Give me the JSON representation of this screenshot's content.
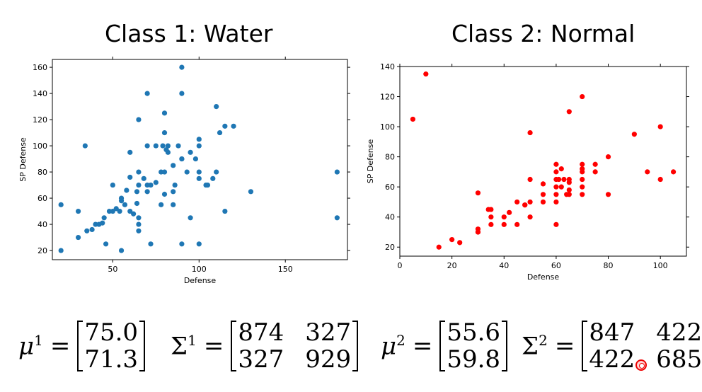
{
  "titles": {
    "left": "Class 1: Water",
    "right": "Class 2: Normal"
  },
  "chart_data": [
    {
      "type": "scatter",
      "title": "Class 1: Water",
      "xlabel": "Defense",
      "ylabel": "SP Defense",
      "xlim": [
        15,
        186
      ],
      "ylim": [
        13,
        166
      ],
      "xticks": [
        50,
        100,
        150
      ],
      "yticks": [
        20,
        40,
        60,
        80,
        100,
        120,
        140,
        160
      ],
      "color": "#1f77b4",
      "grid": false,
      "x": [
        20,
        20,
        30,
        30,
        34,
        35,
        38,
        40,
        42,
        44,
        45,
        46,
        48,
        50,
        50,
        52,
        54,
        55,
        55,
        55,
        57,
        58,
        60,
        60,
        60,
        62,
        64,
        64,
        65,
        65,
        65,
        65,
        65,
        65,
        68,
        70,
        70,
        70,
        70,
        72,
        72,
        75,
        75,
        78,
        78,
        79,
        80,
        80,
        80,
        80,
        81,
        82,
        82,
        85,
        85,
        85,
        86,
        88,
        90,
        90,
        90,
        90,
        90,
        93,
        95,
        95,
        98,
        100,
        100,
        100,
        100,
        100,
        104,
        105,
        108,
        110,
        110,
        112,
        115,
        115,
        120,
        130,
        180,
        180
      ],
      "y": [
        55,
        20,
        50,
        30,
        100,
        35,
        36,
        40,
        40,
        41,
        45,
        25,
        50,
        50,
        70,
        52,
        50,
        58,
        60,
        20,
        55,
        66,
        50,
        95,
        76,
        48,
        56,
        65,
        70,
        80,
        45,
        40,
        35,
        120,
        75,
        100,
        140,
        70,
        65,
        25,
        70,
        72,
        100,
        55,
        80,
        100,
        80,
        125,
        110,
        63,
        97,
        100,
        95,
        85,
        65,
        55,
        70,
        100,
        160,
        140,
        90,
        25,
        90,
        80,
        95,
        45,
        90,
        80,
        105,
        100,
        75,
        25,
        70,
        70,
        75,
        130,
        80,
        110,
        115,
        50,
        115,
        65,
        80,
        45
      ]
    },
    {
      "type": "scatter",
      "title": "Class 2: Normal",
      "xlabel": "Defense",
      "ylabel": "SP Defense",
      "xlim": [
        0,
        110
      ],
      "ylim": [
        14,
        140
      ],
      "xticks": [
        0,
        20,
        40,
        60,
        80,
        100
      ],
      "yticks": [
        20,
        40,
        60,
        80,
        100,
        120,
        140
      ],
      "color": "#ff0000",
      "grid": false,
      "x": [
        5,
        10,
        15,
        20,
        23,
        30,
        30,
        30,
        30,
        34,
        35,
        35,
        35,
        40,
        40,
        42,
        45,
        45,
        48,
        48,
        50,
        50,
        50,
        50,
        55,
        55,
        55,
        60,
        60,
        60,
        60,
        60,
        60,
        60,
        61,
        62,
        62,
        63,
        64,
        65,
        65,
        65,
        65,
        65,
        70,
        70,
        70,
        70,
        70,
        70,
        70,
        75,
        75,
        80,
        80,
        90,
        95,
        100,
        100,
        105
      ],
      "y": [
        105,
        135,
        20,
        25,
        23,
        56,
        32,
        30,
        30,
        45,
        40,
        35,
        45,
        35,
        40,
        43,
        50,
        35,
        48,
        48,
        96,
        40,
        50,
        65,
        50,
        55,
        62,
        35,
        50,
        60,
        65,
        70,
        75,
        55,
        65,
        72,
        60,
        65,
        55,
        55,
        58,
        63,
        65,
        110,
        55,
        60,
        65,
        70,
        72,
        75,
        120,
        70,
        75,
        55,
        80,
        95,
        70,
        65,
        100,
        70
      ]
    }
  ],
  "formulas": {
    "left": {
      "mean_symbol": "μ",
      "mean_sup": "1",
      "mean_values": [
        "75.0",
        "71.3"
      ],
      "cov_symbol": "Σ",
      "cov_sup": "1",
      "cov_col1": [
        "874",
        "327"
      ],
      "cov_col2": [
        "327",
        "929"
      ],
      "equals": "="
    },
    "right": {
      "mean_symbol": "μ",
      "mean_sup": "2",
      "mean_values": [
        "55.6",
        "59.8"
      ],
      "cov_symbol": "Σ",
      "cov_sup": "2",
      "cov_col1": [
        "847",
        "422"
      ],
      "cov_col2": [
        "422",
        "685"
      ],
      "equals": "="
    }
  }
}
